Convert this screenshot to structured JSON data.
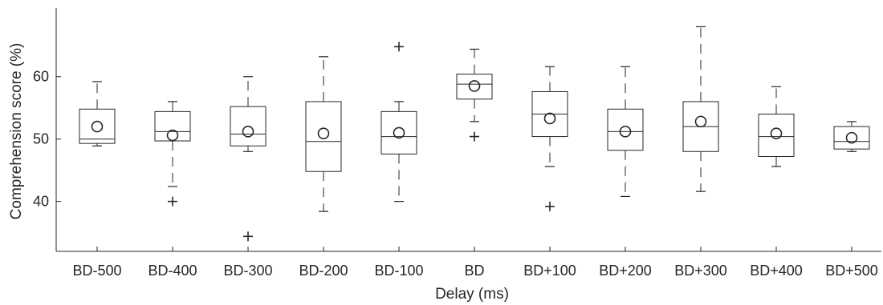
{
  "chart_data": {
    "type": "boxplot",
    "xlabel": "Delay (ms)",
    "ylabel": "Comprehension score (%)",
    "ylim": [
      32,
      71
    ],
    "yticks": [
      40,
      50,
      60
    ],
    "grid": false,
    "categories": [
      "BD-500",
      "BD-400",
      "BD-300",
      "BD-200",
      "BD-100",
      "BD",
      "BD+100",
      "BD+200",
      "BD+300",
      "BD+400",
      "BD+500"
    ],
    "boxes": [
      {
        "category": "BD-500",
        "whisker_low": 48.9,
        "q1": 49.3,
        "median": 50.0,
        "q3": 54.8,
        "whisker_high": 59.2,
        "mean": 52.0,
        "outliers": []
      },
      {
        "category": "BD-400",
        "whisker_low": 42.4,
        "q1": 49.7,
        "median": 51.2,
        "q3": 54.4,
        "whisker_high": 56.0,
        "mean": 50.6,
        "outliers": [
          40.0
        ]
      },
      {
        "category": "BD-300",
        "whisker_low": 48.0,
        "q1": 48.9,
        "median": 50.8,
        "q3": 55.2,
        "whisker_high": 60.0,
        "mean": 51.2,
        "outliers": [
          34.4
        ]
      },
      {
        "category": "BD-200",
        "whisker_low": 38.4,
        "q1": 44.8,
        "median": 49.6,
        "q3": 56.0,
        "whisker_high": 63.2,
        "mean": 50.9,
        "outliers": []
      },
      {
        "category": "BD-100",
        "whisker_low": 40.0,
        "q1": 47.6,
        "median": 50.4,
        "q3": 54.4,
        "whisker_high": 56.0,
        "mean": 51.0,
        "outliers": [
          64.8
        ]
      },
      {
        "category": "BD",
        "whisker_low": 52.8,
        "q1": 56.4,
        "median": 58.8,
        "q3": 60.4,
        "whisker_high": 64.4,
        "mean": 58.5,
        "outliers": [
          50.4
        ]
      },
      {
        "category": "BD+100",
        "whisker_low": 45.6,
        "q1": 50.4,
        "median": 54.0,
        "q3": 57.6,
        "whisker_high": 61.6,
        "mean": 53.3,
        "outliers": [
          39.2
        ]
      },
      {
        "category": "BD+200",
        "whisker_low": 40.8,
        "q1": 48.2,
        "median": 51.2,
        "q3": 54.8,
        "whisker_high": 61.6,
        "mean": 51.2,
        "outliers": []
      },
      {
        "category": "BD+300",
        "whisker_low": 41.6,
        "q1": 48.0,
        "median": 52.0,
        "q3": 56.0,
        "whisker_high": 68.0,
        "mean": 52.8,
        "outliers": []
      },
      {
        "category": "BD+400",
        "whisker_low": 45.6,
        "q1": 47.2,
        "median": 50.4,
        "q3": 54.0,
        "whisker_high": 58.4,
        "mean": 50.9,
        "outliers": []
      },
      {
        "category": "BD+500",
        "whisker_low": 48.0,
        "q1": 48.4,
        "median": 49.6,
        "q3": 52.0,
        "whisker_high": 52.8,
        "mean": 50.2,
        "outliers": []
      }
    ]
  }
}
